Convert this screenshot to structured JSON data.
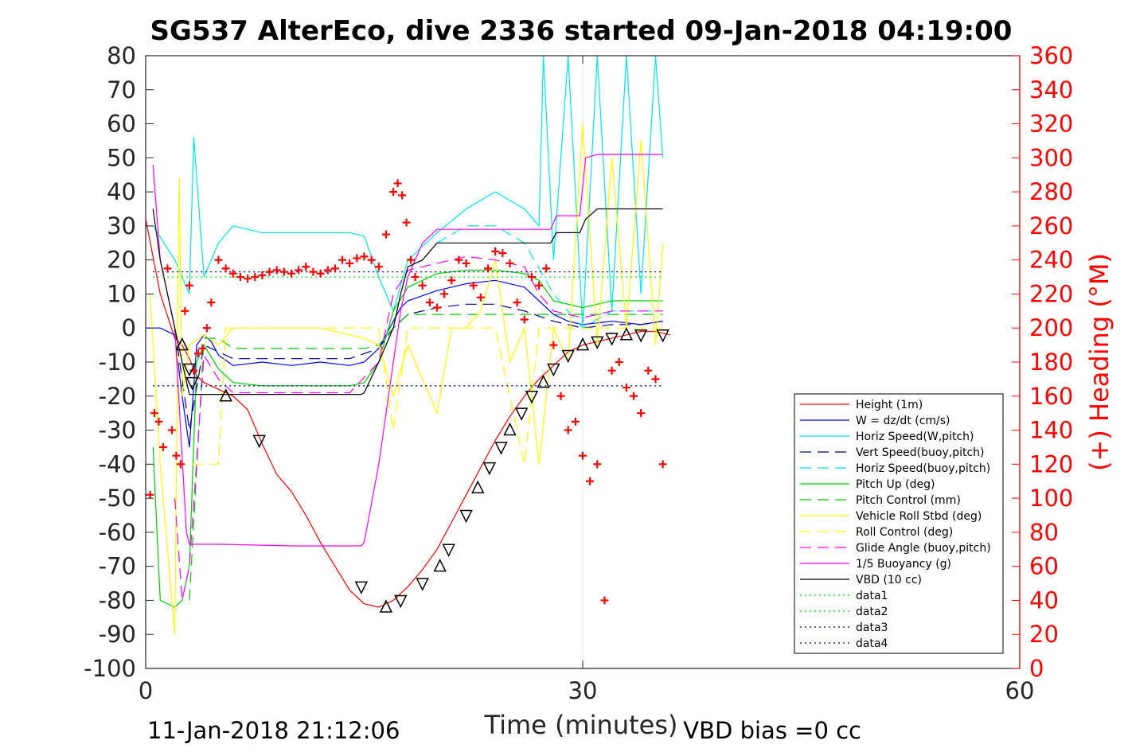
{
  "chart_data": {
    "type": "line",
    "title": "SG537 AlterEco, dive 2336 started 09-Jan-2018 04:19:00",
    "xlabel": "Time (minutes)",
    "ylabel": "",
    "ylabel_right": "(+) Heading (°M)",
    "xlim": [
      0,
      60
    ],
    "ylim": [
      -100,
      80
    ],
    "ylim_right": [
      0,
      360
    ],
    "xticks": [
      "0",
      "30",
      "60"
    ],
    "yticks": [
      "80",
      "70",
      "60",
      "50",
      "40",
      "30",
      "20",
      "10",
      "0",
      "-10",
      "-20",
      "-30",
      "-40",
      "-50",
      "-60",
      "-70",
      "-80",
      "-90",
      "-100"
    ],
    "yticks_right": [
      "360",
      "340",
      "320",
      "300",
      "280",
      "260",
      "240",
      "220",
      "200",
      "180",
      "160",
      "140",
      "120",
      "100",
      "80",
      "60",
      "40",
      "20",
      "0"
    ],
    "grid": "x-only at 30",
    "legend_position": "bottom-right",
    "footer_left": "11-Jan-2018 21:12:06",
    "footer_right": "VBD bias =0 cc",
    "series": [
      {
        "name": "Height (1m)",
        "color": "#ff0000",
        "style": "solid",
        "x": [
          0,
          1,
          2,
          2.5,
          3,
          3.5,
          4,
          5,
          6,
          7,
          8,
          9,
          10,
          11,
          12,
          13,
          14,
          15,
          16,
          17,
          18,
          19,
          20,
          21,
          22,
          23,
          24,
          25,
          26,
          27,
          28,
          29,
          30,
          31,
          32,
          33,
          34,
          35,
          36
        ],
        "y": [
          32,
          10,
          -3,
          -5,
          -9,
          -14,
          -16,
          -18,
          -20,
          -24,
          -34,
          -43,
          -48,
          -55,
          -63,
          -70,
          -77,
          -81,
          -82,
          -80,
          -76,
          -71,
          -65,
          -57,
          -49,
          -41,
          -33,
          -26,
          -20,
          -15,
          -11,
          -7,
          -5,
          -4,
          -3,
          -2,
          -1,
          -1,
          -2
        ]
      },
      {
        "name": "W = dz/dt (cm/s)",
        "color": "#0000ff",
        "style": "solid",
        "x": [
          0,
          1,
          2,
          2.5,
          3,
          3.5,
          4,
          4.5,
          5,
          6,
          8,
          10,
          12,
          14,
          15,
          16,
          17,
          17.5,
          18,
          20,
          22,
          24,
          26,
          27,
          28,
          29,
          30,
          32,
          34,
          35.5
        ],
        "y": [
          0,
          0,
          -2,
          -20,
          -35,
          -5,
          -2,
          -4,
          -8,
          -11,
          -10,
          -11,
          -10,
          -11,
          -10,
          -6,
          2,
          6,
          8,
          11,
          13,
          14,
          12,
          8,
          4,
          2,
          1,
          2,
          1,
          2
        ]
      },
      {
        "name": "Horiz Speed(W,pitch)",
        "color": "#00e5e5",
        "style": "solid",
        "x": [
          0.5,
          2,
          3,
          3.3,
          4,
          5,
          6,
          8,
          10,
          12,
          14,
          15,
          16,
          17,
          18,
          20,
          22,
          24,
          26,
          27,
          27.3,
          28,
          29,
          30,
          31,
          32,
          33,
          34,
          35,
          35.5
        ],
        "y": [
          30,
          20,
          10,
          56,
          15,
          25,
          30,
          28,
          28,
          28,
          28,
          27,
          15,
          5,
          20,
          28,
          35,
          40,
          35,
          30,
          80,
          20,
          80,
          0,
          80,
          5,
          80,
          10,
          80,
          50
        ]
      },
      {
        "name": "Vert Speed(buoy,pitch)",
        "color": "#00008b",
        "style": "dashed",
        "x": [
          2,
          3,
          4,
          6,
          10,
          14,
          16,
          17,
          18,
          20,
          22,
          24,
          26,
          28,
          30,
          32,
          34,
          35.5
        ],
        "y": [
          0,
          -30,
          -5,
          -9,
          -9,
          -9,
          -6,
          0,
          4,
          6,
          7,
          7,
          5,
          2,
          0,
          1,
          1,
          2
        ]
      },
      {
        "name": "Horiz Speed(buoy,pitch)",
        "color": "#00e5e5",
        "style": "dashed",
        "x": [
          20,
          22,
          24,
          26,
          28,
          30,
          32,
          34,
          35.5
        ],
        "y": [
          25,
          30,
          30,
          25,
          10,
          0,
          5,
          5,
          5
        ]
      },
      {
        "name": "Pitch Up (deg)",
        "color": "#00cc00",
        "style": "solid",
        "x": [
          0.5,
          1,
          2,
          2.5,
          3,
          3.5,
          4,
          5,
          6,
          8,
          10,
          12,
          14,
          15,
          16,
          17,
          18,
          20,
          22,
          24,
          26,
          27,
          28,
          30,
          32,
          34,
          35.5
        ],
        "y": [
          -35,
          -80,
          -82,
          -80,
          -70,
          -10,
          -5,
          -12,
          -16,
          -17,
          -17,
          -17,
          -17,
          -16,
          -10,
          5,
          12,
          16,
          17,
          17,
          16,
          14,
          8,
          6,
          8,
          8,
          8
        ]
      },
      {
        "name": "Pitch Control (mm)",
        "color": "#00cc00",
        "style": "dashed",
        "x": [
          3,
          4,
          5,
          6,
          15,
          16,
          17,
          18,
          20,
          22,
          24,
          26,
          27,
          28,
          35.5
        ],
        "y": [
          -80,
          -3,
          -3,
          -6,
          -6,
          -5,
          0,
          4,
          4,
          4,
          4,
          4,
          4,
          4,
          4
        ]
      },
      {
        "name": "Vehicle Roll Stbd (deg)",
        "color": "#ffff00",
        "style": "solid",
        "x": [
          0.3,
          1,
          2,
          2.3,
          2.5,
          3,
          4,
          5,
          6,
          8,
          10,
          12,
          14,
          15,
          16,
          17,
          18,
          19,
          20,
          21,
          22,
          23,
          24,
          25,
          26,
          27,
          28,
          29,
          30,
          31,
          32,
          33,
          34,
          35,
          35.5
        ],
        "y": [
          10,
          -40,
          -90,
          44,
          -20,
          -5,
          -2,
          -5,
          0,
          0,
          0,
          0,
          -2,
          -3,
          -5,
          -20,
          -5,
          -15,
          -25,
          0,
          0,
          5,
          20,
          -10,
          0,
          -40,
          0,
          -10,
          60,
          -5,
          50,
          0,
          55,
          -5,
          25
        ]
      },
      {
        "name": "Roll Control (deg)",
        "color": "#ffff00",
        "style": "dashed",
        "x": [
          2,
          3,
          5,
          5.5,
          6,
          15,
          16,
          17,
          18,
          20,
          22,
          24,
          26,
          27,
          28,
          35.5
        ],
        "y": [
          -40,
          -40,
          -40,
          0,
          0,
          0,
          0,
          -30,
          0,
          0,
          0,
          0,
          -40,
          0,
          0,
          0
        ]
      },
      {
        "name": "Glide Angle (buoy,pitch)",
        "color": "#ff00ff",
        "style": "dashed",
        "x": [
          2,
          2.5,
          3,
          4,
          5,
          6,
          10,
          14,
          16,
          17,
          18,
          20,
          22,
          24,
          26,
          27,
          28,
          30,
          32,
          34,
          35.5
        ],
        "y": [
          -50,
          -80,
          -70,
          -8,
          -15,
          -19,
          -19,
          -19,
          -10,
          10,
          17,
          19,
          21,
          20,
          18,
          10,
          5,
          3,
          5,
          5,
          5
        ]
      },
      {
        "name": "1/5 Buoyancy (g)",
        "color": "#ff00ff",
        "style": "solid",
        "x": [
          0.5,
          1,
          2,
          2.8,
          3,
          5,
          10,
          14.8,
          15,
          16,
          17,
          17.5,
          18,
          19,
          20,
          22,
          24,
          26,
          27.8,
          28.2,
          29,
          29.8,
          30.2,
          31,
          35.5
        ],
        "y": [
          48,
          20,
          0,
          -60,
          -63.5,
          -63.5,
          -64,
          -64,
          -63,
          -40,
          -10,
          5,
          15,
          25,
          29,
          29,
          29,
          29,
          29,
          33,
          33,
          33,
          50,
          51,
          51
        ]
      },
      {
        "name": "VBD (10 cc)",
        "color": "#000000",
        "style": "solid",
        "x": [
          0.5,
          1,
          2,
          2.5,
          3,
          5,
          10,
          14.8,
          15,
          16,
          17,
          17.5,
          18,
          19,
          20,
          22,
          24,
          26,
          27.8,
          28.2,
          29,
          29.8,
          30.2,
          31,
          35.5
        ],
        "y": [
          35,
          20,
          0,
          -10,
          -19.5,
          -19.5,
          -19.5,
          -19.5,
          -19,
          -10,
          0,
          10,
          18,
          20,
          25,
          25,
          25,
          25,
          25,
          28,
          28,
          28,
          32,
          35,
          35
        ]
      },
      {
        "name": "data1",
        "color": "#00dd00",
        "style": "dotted",
        "x": [
          0.5,
          35.5
        ],
        "y": [
          15,
          15
        ]
      },
      {
        "name": "data2",
        "color": "#00dd00",
        "style": "dotted",
        "x": [
          0.5,
          35.5
        ],
        "y": [
          -17,
          -17
        ]
      },
      {
        "name": "data3",
        "color": "#00008b",
        "style": "dotted",
        "x": [
          0.5,
          35.5
        ],
        "y": [
          16.5,
          16.5
        ]
      },
      {
        "name": "data4",
        "color": "#00008b",
        "style": "dotted",
        "x": [
          0.5,
          35.5
        ],
        "y": [
          -17,
          -17
        ]
      }
    ],
    "heading_points": {
      "color": "#ff0000",
      "marker": "+",
      "x": [
        0.3,
        0.6,
        0.9,
        1.2,
        1.5,
        1.8,
        2.1,
        2.4,
        2.7,
        3,
        3.3,
        3.6,
        3.9,
        4.2,
        4.5,
        5,
        5.5,
        6,
        6.5,
        7,
        7.5,
        8,
        8.5,
        9,
        9.5,
        10,
        10.5,
        11,
        11.5,
        12,
        12.5,
        13,
        13.5,
        14,
        14.5,
        15,
        15.5,
        16,
        16.5,
        17,
        17.3,
        17.6,
        17.9,
        18.2,
        18.5,
        19,
        19.5,
        20,
        20.5,
        21,
        21.5,
        22,
        22.5,
        23,
        23.5,
        24,
        24.5,
        25,
        25.5,
        26,
        26.5,
        27,
        27.5,
        28,
        28.5,
        29,
        29.5,
        30,
        30.5,
        31,
        31.5,
        32,
        32.5,
        33,
        33.5,
        34,
        34.5,
        35,
        35.5
      ],
      "y": [
        102,
        150,
        145,
        130,
        235,
        140,
        125,
        120,
        210,
        225,
        175,
        185,
        188,
        200,
        215,
        240,
        235,
        232,
        230,
        229,
        230,
        231,
        233,
        234,
        233,
        232,
        234,
        236,
        233,
        232,
        234,
        235,
        240,
        238,
        241,
        242,
        240,
        236,
        255,
        280,
        285,
        278,
        262,
        240,
        230,
        225,
        215,
        212,
        220,
        228,
        240,
        238,
        225,
        218,
        235,
        245,
        244,
        238,
        215,
        205,
        230,
        225,
        235,
        190,
        160,
        140,
        145,
        125,
        110,
        120,
        40,
        175,
        180,
        165,
        160,
        150,
        175,
        170,
        120
      ]
    },
    "depth_markers": {
      "color": "#000000",
      "marker": "triangle",
      "x": [
        2.5,
        3,
        3.2,
        5.5,
        7.8,
        14.8,
        16.5,
        17.5,
        19,
        20.2,
        20.8,
        22,
        22.8,
        23.6,
        24.4,
        25,
        25.8,
        26.5,
        27.3,
        28,
        29,
        30,
        31,
        32,
        33,
        34,
        35.5
      ],
      "y": [
        -5,
        -12,
        -16,
        -20,
        -33,
        -76,
        -82,
        -80,
        -75,
        -70,
        -65,
        -55,
        -47,
        -41,
        -35,
        -30,
        -25,
        -20,
        -16,
        -12,
        -8,
        -5,
        -4,
        -3,
        -2,
        -2,
        -2
      ]
    }
  }
}
